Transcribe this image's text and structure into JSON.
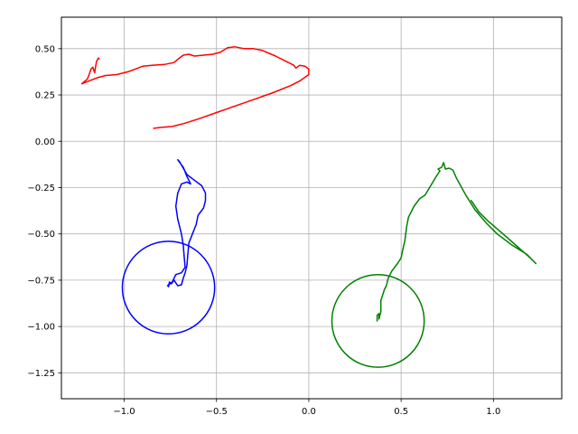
{
  "chart_data": {
    "type": "line",
    "title": "",
    "xlabel": "",
    "ylabel": "",
    "xlim": [
      -1.34,
      1.37
    ],
    "ylim": [
      -1.39,
      0.67
    ],
    "grid": true,
    "x_ticks": [
      -1.0,
      -0.5,
      0.0,
      0.5,
      1.0
    ],
    "x_tick_labels": [
      "−1.0",
      "−0.5",
      "0.0",
      "0.5",
      "1.0"
    ],
    "y_ticks": [
      0.5,
      0.25,
      0.0,
      -0.25,
      -0.5,
      -0.75,
      -1.0,
      -1.25
    ],
    "y_tick_labels": [
      "0.50",
      "0.25",
      "0.00",
      "−0.25",
      "−0.50",
      "−0.75",
      "−1.00",
      "−1.25"
    ],
    "series": [
      {
        "color": "#ff0000",
        "kind": "path",
        "points": [
          [
            -0.84,
            0.07
          ],
          [
            -0.8,
            0.075
          ],
          [
            -0.74,
            0.08
          ],
          [
            -0.68,
            0.095
          ],
          [
            -0.6,
            0.12
          ],
          [
            -0.5,
            0.155
          ],
          [
            -0.4,
            0.19
          ],
          [
            -0.3,
            0.225
          ],
          [
            -0.2,
            0.26
          ],
          [
            -0.1,
            0.3
          ],
          [
            -0.05,
            0.325
          ],
          [
            0.0,
            0.36
          ],
          [
            0.0,
            0.39
          ],
          [
            -0.02,
            0.405
          ],
          [
            -0.05,
            0.41
          ],
          [
            -0.07,
            0.395
          ],
          [
            -0.08,
            0.41
          ],
          [
            -0.12,
            0.43
          ],
          [
            -0.18,
            0.46
          ],
          [
            -0.25,
            0.49
          ],
          [
            -0.3,
            0.5
          ],
          [
            -0.35,
            0.5
          ],
          [
            -0.4,
            0.51
          ],
          [
            -0.44,
            0.505
          ],
          [
            -0.48,
            0.48
          ],
          [
            -0.52,
            0.47
          ],
          [
            -0.57,
            0.465
          ],
          [
            -0.62,
            0.46
          ],
          [
            -0.65,
            0.47
          ],
          [
            -0.68,
            0.465
          ],
          [
            -0.7,
            0.45
          ],
          [
            -0.73,
            0.425
          ],
          [
            -0.78,
            0.415
          ],
          [
            -0.85,
            0.41
          ],
          [
            -0.9,
            0.405
          ],
          [
            -0.94,
            0.39
          ],
          [
            -0.98,
            0.375
          ],
          [
            -1.04,
            0.36
          ],
          [
            -1.1,
            0.355
          ],
          [
            -1.14,
            0.345
          ],
          [
            -1.18,
            0.33
          ],
          [
            -1.23,
            0.31
          ],
          [
            -1.2,
            0.335
          ],
          [
            -1.19,
            0.36
          ],
          [
            -1.18,
            0.39
          ],
          [
            -1.17,
            0.4
          ],
          [
            -1.16,
            0.37
          ],
          [
            -1.155,
            0.4
          ],
          [
            -1.15,
            0.43
          ],
          [
            -1.14,
            0.45
          ],
          [
            -1.135,
            0.445
          ]
        ]
      },
      {
        "color": "#0000ff",
        "kind": "path",
        "points": [
          [
            -0.76,
            -0.785
          ],
          [
            -0.755,
            -0.76
          ],
          [
            -0.745,
            -0.77
          ],
          [
            -0.73,
            -0.75
          ],
          [
            -0.71,
            -0.78
          ],
          [
            -0.69,
            -0.775
          ],
          [
            -0.68,
            -0.74
          ],
          [
            -0.67,
            -0.71
          ],
          [
            -0.66,
            -0.67
          ],
          [
            -0.655,
            -0.61
          ],
          [
            -0.65,
            -0.55
          ],
          [
            -0.63,
            -0.5
          ],
          [
            -0.61,
            -0.45
          ],
          [
            -0.6,
            -0.4
          ],
          [
            -0.57,
            -0.36
          ],
          [
            -0.56,
            -0.32
          ],
          [
            -0.56,
            -0.28
          ],
          [
            -0.58,
            -0.24
          ],
          [
            -0.62,
            -0.21
          ],
          [
            -0.66,
            -0.18
          ],
          [
            -0.7,
            -0.11
          ],
          [
            -0.71,
            -0.1
          ],
          [
            -0.68,
            -0.14
          ],
          [
            -0.66,
            -0.19
          ],
          [
            -0.64,
            -0.23
          ],
          [
            -0.66,
            -0.22
          ],
          [
            -0.69,
            -0.23
          ],
          [
            -0.71,
            -0.28
          ],
          [
            -0.72,
            -0.35
          ],
          [
            -0.71,
            -0.42
          ],
          [
            -0.69,
            -0.5
          ],
          [
            -0.68,
            -0.56
          ],
          [
            -0.675,
            -0.62
          ],
          [
            -0.67,
            -0.68
          ],
          [
            -0.69,
            -0.71
          ],
          [
            -0.72,
            -0.72
          ],
          [
            -0.74,
            -0.76
          ],
          [
            -0.765,
            -0.78
          ]
        ]
      },
      {
        "color": "#0000ff",
        "kind": "circle",
        "center": [
          -0.76,
          -0.79
        ],
        "radius": 0.25
      },
      {
        "color": "#008000",
        "kind": "path",
        "points": [
          [
            0.37,
            -0.97
          ],
          [
            0.37,
            -0.94
          ],
          [
            0.38,
            -0.93
          ],
          [
            0.38,
            -0.96
          ],
          [
            0.39,
            -0.92
          ],
          [
            0.39,
            -0.86
          ],
          [
            0.41,
            -0.8
          ],
          [
            0.42,
            -0.78
          ],
          [
            0.43,
            -0.74
          ],
          [
            0.45,
            -0.7
          ],
          [
            0.48,
            -0.66
          ],
          [
            0.5,
            -0.63
          ],
          [
            0.51,
            -0.58
          ],
          [
            0.52,
            -0.54
          ],
          [
            0.53,
            -0.46
          ],
          [
            0.54,
            -0.41
          ],
          [
            0.57,
            -0.35
          ],
          [
            0.6,
            -0.31
          ],
          [
            0.63,
            -0.29
          ],
          [
            0.66,
            -0.24
          ],
          [
            0.69,
            -0.19
          ],
          [
            0.71,
            -0.16
          ],
          [
            0.7,
            -0.15
          ],
          [
            0.72,
            -0.14
          ],
          [
            0.73,
            -0.115
          ],
          [
            0.74,
            -0.15
          ],
          [
            0.76,
            -0.145
          ],
          [
            0.78,
            -0.155
          ],
          [
            0.8,
            -0.2
          ],
          [
            0.85,
            -0.29
          ],
          [
            0.9,
            -0.37
          ],
          [
            0.96,
            -0.44
          ],
          [
            1.02,
            -0.5
          ],
          [
            1.1,
            -0.56
          ],
          [
            1.18,
            -0.61
          ],
          [
            1.23,
            -0.66
          ],
          [
            1.2,
            -0.63
          ],
          [
            1.12,
            -0.56
          ],
          [
            1.04,
            -0.49
          ],
          [
            0.97,
            -0.43
          ],
          [
            0.92,
            -0.38
          ],
          [
            0.88,
            -0.32
          ]
        ]
      },
      {
        "color": "#008000",
        "kind": "circle",
        "center": [
          0.375,
          -0.97
        ],
        "radius": 0.25
      }
    ]
  }
}
